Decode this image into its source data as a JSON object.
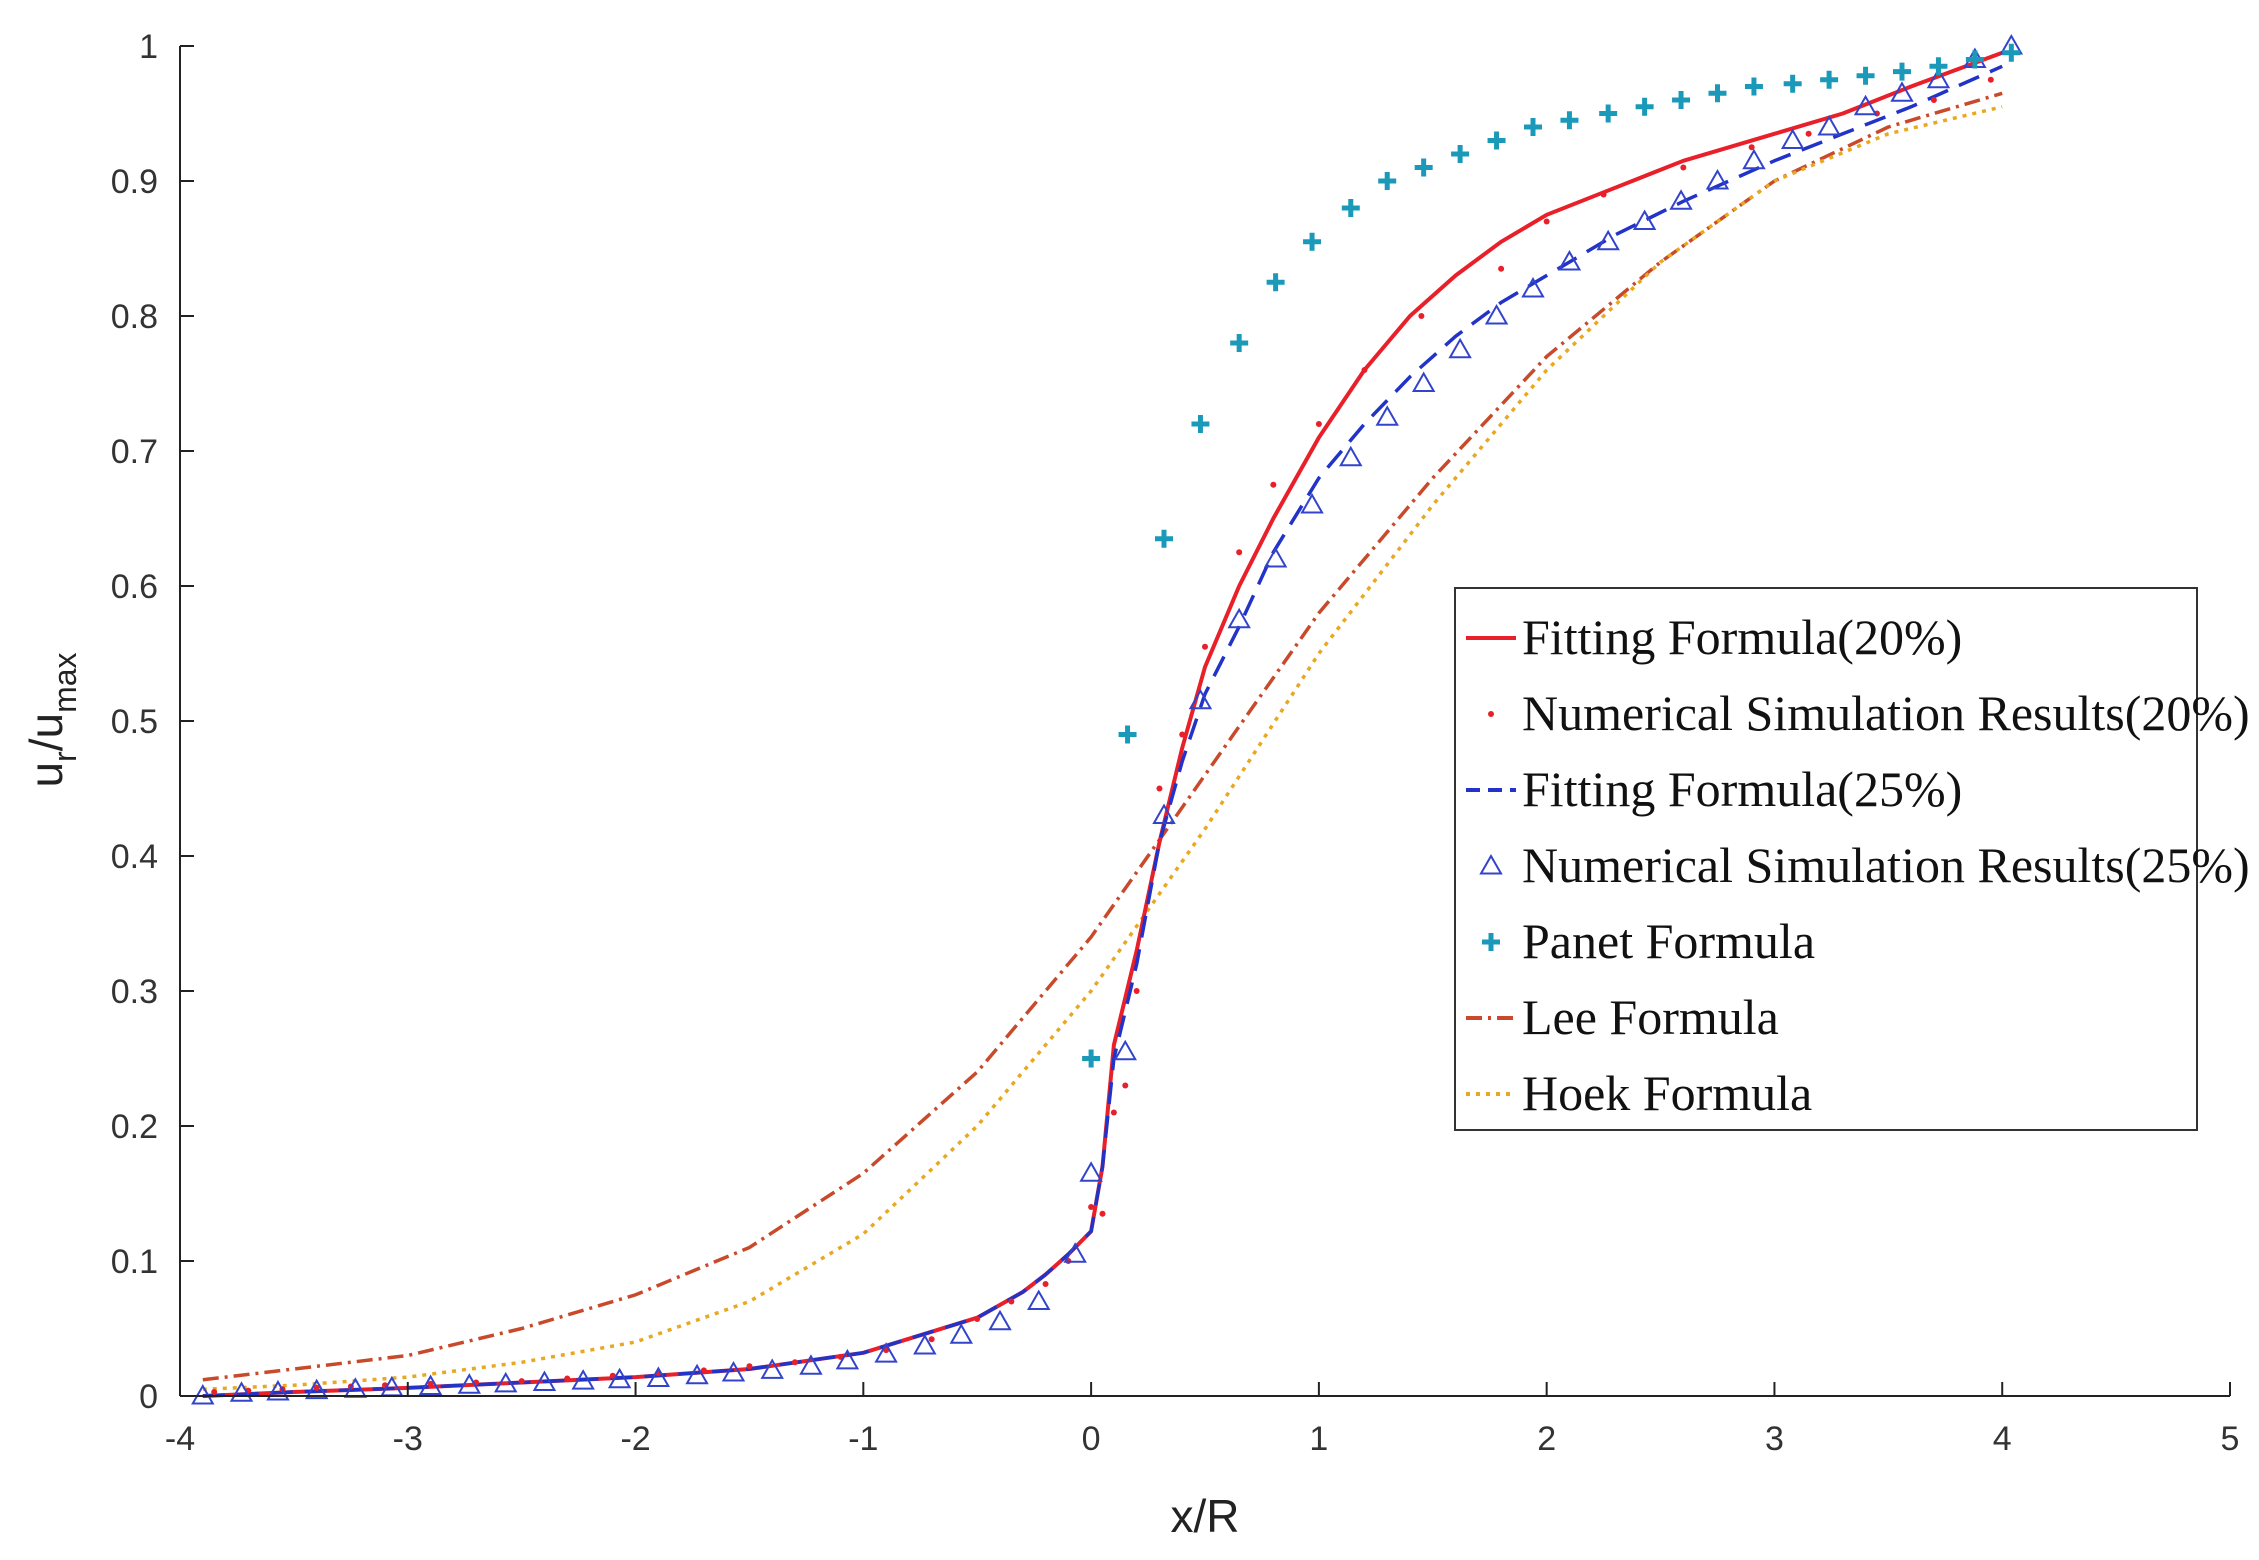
{
  "chart_data": {
    "type": "line",
    "title": "",
    "xlabel": "x/R",
    "ylabel": {
      "base": "u",
      "sub1": "r",
      "slash": "/u",
      "sub2": "max"
    },
    "xlim": [
      -4,
      5
    ],
    "ylim": [
      0,
      1
    ],
    "xticks": [
      "-4",
      "-3",
      "-2",
      "-1",
      "0",
      "1",
      "2",
      "3",
      "4",
      "5"
    ],
    "yticks": [
      "0",
      "0.1",
      "0.2",
      "0.3",
      "0.4",
      "0.5",
      "0.6",
      "0.7",
      "0.8",
      "0.9",
      "1"
    ],
    "grid": false,
    "legend_position": "right-center",
    "series": [
      {
        "name": "Fitting Formula(20%)",
        "style": "solid",
        "color": "#e8202a",
        "x": [
          -3.9,
          -3.5,
          -3.0,
          -2.5,
          -2.0,
          -1.5,
          -1.0,
          -0.5,
          -0.3,
          -0.2,
          -0.1,
          0.0,
          0.05,
          0.1,
          0.2,
          0.3,
          0.4,
          0.5,
          0.65,
          0.8,
          1.0,
          1.2,
          1.4,
          1.6,
          1.8,
          2.0,
          2.3,
          2.6,
          3.0,
          3.3,
          3.6,
          4.0
        ],
        "y": [
          0.0,
          0.003,
          0.006,
          0.01,
          0.014,
          0.02,
          0.032,
          0.058,
          0.077,
          0.09,
          0.105,
          0.122,
          0.17,
          0.26,
          0.33,
          0.41,
          0.48,
          0.54,
          0.6,
          0.65,
          0.71,
          0.76,
          0.8,
          0.83,
          0.855,
          0.875,
          0.895,
          0.915,
          0.935,
          0.95,
          0.97,
          0.995
        ]
      },
      {
        "name": "Numerical Simulation Results(20%)",
        "style": "dots",
        "color": "#e8202a",
        "x": [
          -3.85,
          -3.7,
          -3.55,
          -3.4,
          -3.25,
          -3.1,
          -2.9,
          -2.7,
          -2.5,
          -2.3,
          -2.1,
          -1.9,
          -1.7,
          -1.5,
          -1.3,
          -1.1,
          -0.9,
          -0.7,
          -0.5,
          -0.35,
          -0.2,
          -0.1,
          0.0,
          0.05,
          0.1,
          0.15,
          0.2,
          0.3,
          0.4,
          0.5,
          0.65,
          0.8,
          1.0,
          1.2,
          1.45,
          1.8,
          2.0,
          2.25,
          2.6,
          2.9,
          3.15,
          3.45,
          3.7,
          3.95
        ],
        "y": [
          0.003,
          0.004,
          0.005,
          0.006,
          0.007,
          0.008,
          0.009,
          0.01,
          0.011,
          0.013,
          0.015,
          0.017,
          0.019,
          0.022,
          0.025,
          0.029,
          0.034,
          0.042,
          0.057,
          0.07,
          0.083,
          0.1,
          0.14,
          0.135,
          0.21,
          0.23,
          0.3,
          0.45,
          0.49,
          0.555,
          0.625,
          0.675,
          0.72,
          0.76,
          0.8,
          0.835,
          0.87,
          0.89,
          0.91,
          0.925,
          0.935,
          0.95,
          0.96,
          0.975
        ]
      },
      {
        "name": "Fitting Formula(25%)",
        "style": "dashed",
        "color": "#2233c8",
        "x": [
          -3.9,
          -3.5,
          -3.0,
          -2.5,
          -2.0,
          -1.5,
          -1.0,
          -0.5,
          -0.3,
          -0.2,
          -0.1,
          0.0,
          0.05,
          0.1,
          0.2,
          0.3,
          0.4,
          0.5,
          0.65,
          0.8,
          1.0,
          1.2,
          1.4,
          1.6,
          1.8,
          2.0,
          2.3,
          2.6,
          3.0,
          3.3,
          3.6,
          4.0
        ],
        "y": [
          0.0,
          0.003,
          0.006,
          0.01,
          0.014,
          0.02,
          0.032,
          0.058,
          0.077,
          0.09,
          0.105,
          0.122,
          0.17,
          0.25,
          0.32,
          0.41,
          0.47,
          0.52,
          0.57,
          0.625,
          0.68,
          0.72,
          0.755,
          0.785,
          0.81,
          0.83,
          0.86,
          0.885,
          0.915,
          0.935,
          0.955,
          0.985
        ]
      },
      {
        "name": "Numerical Simulation Results(25%)",
        "style": "triangles",
        "color": "#3344cc",
        "x": [
          -3.9,
          -3.73,
          -3.57,
          -3.4,
          -3.23,
          -3.07,
          -2.9,
          -2.73,
          -2.57,
          -2.4,
          -2.23,
          -2.07,
          -1.9,
          -1.73,
          -1.57,
          -1.4,
          -1.23,
          -1.07,
          -0.9,
          -0.73,
          -0.57,
          -0.4,
          -0.23,
          -0.07,
          0.0,
          0.15,
          0.32,
          0.48,
          0.65,
          0.81,
          0.97,
          1.14,
          1.3,
          1.46,
          1.62,
          1.78,
          1.94,
          2.1,
          2.27,
          2.43,
          2.59,
          2.75,
          2.91,
          3.08,
          3.24,
          3.4,
          3.56,
          3.72,
          3.88,
          4.04
        ],
        "y": [
          0.0,
          0.002,
          0.003,
          0.004,
          0.005,
          0.006,
          0.007,
          0.008,
          0.009,
          0.01,
          0.011,
          0.012,
          0.013,
          0.015,
          0.017,
          0.019,
          0.022,
          0.026,
          0.031,
          0.037,
          0.045,
          0.055,
          0.07,
          0.105,
          0.165,
          0.255,
          0.43,
          0.515,
          0.575,
          0.62,
          0.66,
          0.695,
          0.725,
          0.75,
          0.775,
          0.8,
          0.82,
          0.84,
          0.855,
          0.87,
          0.885,
          0.9,
          0.915,
          0.93,
          0.94,
          0.955,
          0.965,
          0.975,
          0.99,
          1.0
        ]
      },
      {
        "name": "Panet Formula",
        "style": "plus",
        "color": "#1a9ab8",
        "x": [
          0.0,
          0.16,
          0.32,
          0.48,
          0.65,
          0.81,
          0.97,
          1.14,
          1.3,
          1.46,
          1.62,
          1.78,
          1.94,
          2.1,
          2.27,
          2.43,
          2.59,
          2.75,
          2.91,
          3.08,
          3.24,
          3.4,
          3.56,
          3.72,
          3.88,
          4.04
        ],
        "y": [
          0.25,
          0.49,
          0.635,
          0.72,
          0.78,
          0.825,
          0.855,
          0.88,
          0.9,
          0.91,
          0.92,
          0.93,
          0.94,
          0.945,
          0.95,
          0.955,
          0.96,
          0.965,
          0.97,
          0.972,
          0.975,
          0.978,
          0.981,
          0.985,
          0.99,
          0.995
        ]
      },
      {
        "name": "Lee Formula",
        "style": "dashdot",
        "color": "#c84a2a",
        "x": [
          -3.9,
          -3.5,
          -3.0,
          -2.5,
          -2.0,
          -1.5,
          -1.0,
          -0.5,
          0.0,
          0.5,
          1.0,
          1.5,
          2.0,
          2.5,
          3.0,
          3.5,
          4.0
        ],
        "y": [
          0.012,
          0.02,
          0.03,
          0.05,
          0.075,
          0.11,
          0.165,
          0.24,
          0.34,
          0.46,
          0.58,
          0.68,
          0.77,
          0.84,
          0.9,
          0.94,
          0.965
        ]
      },
      {
        "name": "Hoek Formula",
        "style": "dotted",
        "color": "#e8a820",
        "x": [
          -3.9,
          -3.5,
          -3.0,
          -2.5,
          -2.0,
          -1.5,
          -1.0,
          -0.5,
          0.0,
          0.5,
          1.0,
          1.5,
          2.0,
          2.5,
          3.0,
          3.5,
          4.0
        ],
        "y": [
          0.005,
          0.008,
          0.014,
          0.025,
          0.04,
          0.07,
          0.12,
          0.2,
          0.3,
          0.42,
          0.55,
          0.66,
          0.76,
          0.84,
          0.9,
          0.935,
          0.955
        ]
      }
    ]
  }
}
